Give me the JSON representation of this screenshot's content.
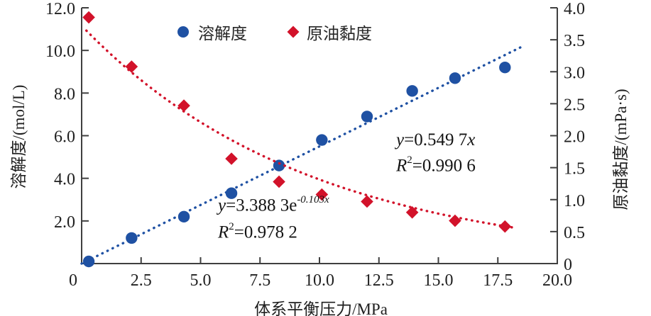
{
  "colors": {
    "solubility_blue": "#1f51a3",
    "viscosity_red": "#d2122a",
    "axis": "#3f3f3f",
    "text": "#1f1f1f"
  },
  "legend": {
    "items": [
      {
        "key": "solubility",
        "label": "溶解度",
        "marker": "circle",
        "color": "#1f51a3"
      },
      {
        "key": "viscosity",
        "label": "原油黏度",
        "marker": "diamond",
        "color": "#d2122a"
      }
    ]
  },
  "annotations": {
    "blue_eq": {
      "v1": "y",
      "body": "=0.549 7",
      "v2": "x"
    },
    "blue_r2": {
      "v": "R",
      "sup": "2",
      "body": "=0.990 6"
    },
    "red_eq": {
      "v1": "y",
      "body": "=3.388 3e",
      "sup": "-0.103x"
    },
    "red_r2": {
      "v": "R",
      "sup": "2",
      "body": "=0.978 2"
    }
  },
  "chart_data": {
    "type": "scatter",
    "x_axis": {
      "label": "体系平衡压力/MPa",
      "min": 0,
      "max": 20,
      "tick_values": [
        0,
        2.5,
        5,
        7.5,
        10,
        12.5,
        15,
        17.5,
        20
      ],
      "tick_labels": [
        "0",
        "2.5",
        "5.0",
        "7.5",
        "10.0",
        "12.5",
        "15.0",
        "17.5",
        "20.0"
      ]
    },
    "y_axis_left": {
      "label": "溶解度/(mol/L)",
      "min": 0,
      "max": 12,
      "tick_values": [
        2,
        4,
        6,
        8,
        10,
        12
      ],
      "tick_labels": [
        "2.0",
        "4.0",
        "6.0",
        "8.0",
        "10.0",
        "12.0"
      ]
    },
    "y_axis_right": {
      "label": "原油黏度/(mPa·s)",
      "min": 0,
      "max": 4,
      "tick_values": [
        0,
        0.5,
        1,
        1.5,
        2,
        2.5,
        3,
        3.5,
        4
      ],
      "tick_labels": [
        "0",
        "0.5",
        "1.0",
        "1.5",
        "2.0",
        "2.5",
        "3.0",
        "3.5",
        "4.0"
      ]
    },
    "grid": false,
    "legend_position": "top-center",
    "series": [
      {
        "key": "solubility",
        "name": "溶解度",
        "axis": "left",
        "marker": "circle",
        "color": "#1f51a3",
        "points": [
          [
            0.3,
            0.1
          ],
          [
            2.1,
            1.2
          ],
          [
            4.3,
            2.2
          ],
          [
            6.3,
            3.3
          ],
          [
            8.3,
            4.6
          ],
          [
            10.1,
            5.8
          ],
          [
            12.0,
            6.9
          ],
          [
            13.9,
            8.1
          ],
          [
            15.7,
            8.7
          ],
          [
            17.8,
            9.2
          ]
        ],
        "trend": {
          "type": "linear",
          "slope": 0.5497,
          "intercept": 0,
          "draw_range": [
            0,
            18.55
          ],
          "equation": "y=0.549 7x",
          "r_squared": "R²=0.990 6"
        }
      },
      {
        "key": "viscosity",
        "name": "原油黏度",
        "axis": "right",
        "marker": "diamond",
        "color": "#d2122a",
        "points": [
          [
            0.3,
            3.85
          ],
          [
            2.1,
            3.08
          ],
          [
            4.3,
            2.47
          ],
          [
            6.3,
            1.64
          ],
          [
            8.3,
            1.28
          ],
          [
            10.1,
            1.08
          ],
          [
            12.0,
            0.97
          ],
          [
            13.9,
            0.8
          ],
          [
            15.7,
            0.67
          ],
          [
            17.8,
            0.58
          ]
        ],
        "trend": {
          "type": "exponential",
          "a": 3.3883,
          "b": -0.103,
          "draw_a": 3.72,
          "draw_b": -0.104,
          "draw_range": [
            0.2,
            18.3
          ],
          "equation": "y=3.388 3e^(-0.103x)",
          "r_squared": "R²=0.978 2"
        }
      }
    ]
  }
}
